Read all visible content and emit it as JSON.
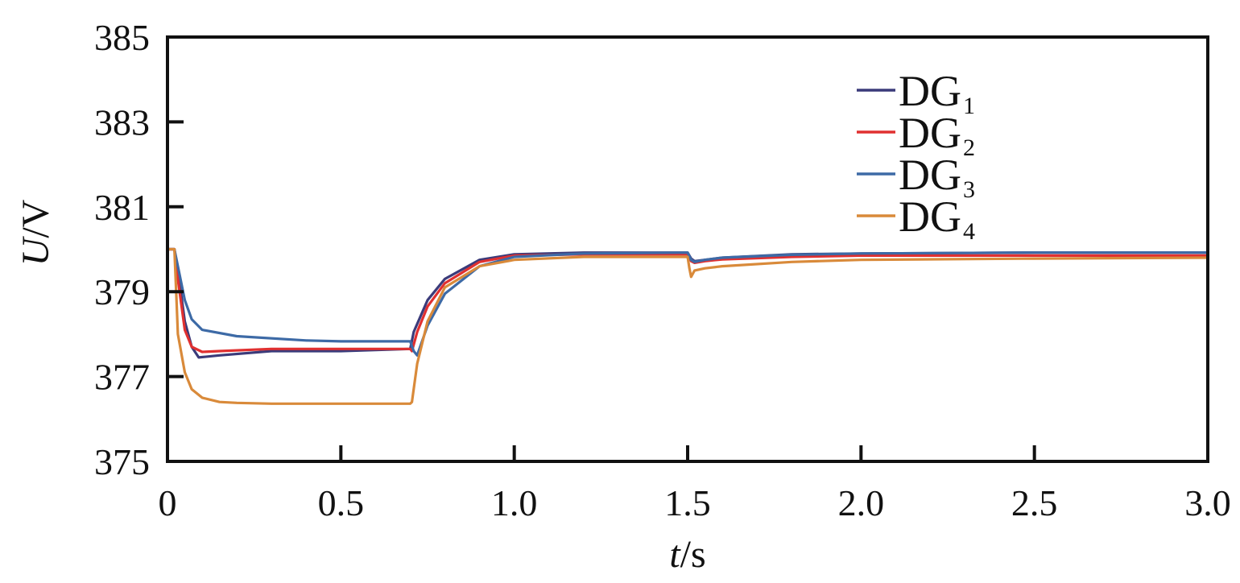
{
  "chart_data": {
    "type": "line",
    "xlabel": {
      "var": "t",
      "unit": "/s"
    },
    "ylabel": {
      "var": "U",
      "unit": "/V"
    },
    "xlim": [
      0,
      3.0
    ],
    "ylim": [
      375,
      385
    ],
    "xticks": [
      "0",
      "0.5",
      "1.0",
      "1.5",
      "2.0",
      "2.5",
      "3.0"
    ],
    "xtick_values": [
      0,
      0.5,
      1.0,
      1.5,
      2.0,
      2.5,
      3.0
    ],
    "yticks": [
      "375",
      "377",
      "379",
      "381",
      "383",
      "385"
    ],
    "ytick_values": [
      375,
      377,
      379,
      381,
      383,
      385
    ],
    "grid": false,
    "legend_position": "top-right",
    "series": [
      {
        "name": "DG",
        "sub": "1",
        "color": "#3b3b7a",
        "x": [
          0,
          0.02,
          0.03,
          0.05,
          0.07,
          0.09,
          0.15,
          0.3,
          0.5,
          0.7,
          0.71,
          0.75,
          0.8,
          0.9,
          1.0,
          1.2,
          1.5,
          1.51,
          1.52,
          1.55,
          1.6,
          1.8,
          2.0,
          2.5,
          3.0
        ],
        "y": [
          380,
          380,
          379.5,
          378.3,
          377.7,
          377.45,
          377.5,
          377.6,
          377.6,
          377.65,
          378.05,
          378.8,
          379.3,
          379.75,
          379.88,
          379.92,
          379.92,
          379.78,
          379.72,
          379.75,
          379.8,
          379.88,
          379.9,
          379.92,
          379.92
        ]
      },
      {
        "name": "DG",
        "sub": "2",
        "color": "#e03030",
        "x": [
          0,
          0.02,
          0.03,
          0.05,
          0.07,
          0.1,
          0.15,
          0.3,
          0.5,
          0.7,
          0.705,
          0.72,
          0.75,
          0.8,
          0.9,
          1.0,
          1.2,
          1.5,
          1.51,
          1.52,
          1.55,
          1.6,
          1.8,
          2.0,
          2.5,
          3.0
        ],
        "y": [
          380,
          380,
          379.3,
          378.1,
          377.7,
          377.58,
          377.6,
          377.65,
          377.65,
          377.65,
          377.6,
          378.05,
          378.65,
          379.2,
          379.7,
          379.85,
          379.88,
          379.88,
          379.72,
          379.68,
          379.72,
          379.76,
          379.82,
          379.85,
          379.85,
          379.85
        ]
      },
      {
        "name": "DG",
        "sub": "3",
        "color": "#3d6aa6",
        "x": [
          0,
          0.02,
          0.03,
          0.05,
          0.07,
          0.1,
          0.2,
          0.4,
          0.5,
          0.7,
          0.71,
          0.72,
          0.75,
          0.8,
          0.9,
          1.0,
          1.2,
          1.5,
          1.51,
          1.52,
          1.55,
          1.6,
          1.8,
          2.0,
          2.5,
          3.0
        ],
        "y": [
          380,
          380,
          379.6,
          378.8,
          378.35,
          378.1,
          377.95,
          377.85,
          377.83,
          377.83,
          377.6,
          377.5,
          378.2,
          378.95,
          379.6,
          379.82,
          379.9,
          379.92,
          379.75,
          379.7,
          379.75,
          379.8,
          379.87,
          379.9,
          379.92,
          379.92
        ]
      },
      {
        "name": "DG",
        "sub": "4",
        "color": "#d98a3a",
        "x": [
          0,
          0.02,
          0.025,
          0.03,
          0.05,
          0.07,
          0.1,
          0.15,
          0.2,
          0.3,
          0.5,
          0.7,
          0.705,
          0.72,
          0.75,
          0.8,
          0.9,
          1.0,
          1.2,
          1.5,
          1.505,
          1.51,
          1.52,
          1.55,
          1.6,
          1.8,
          2.0,
          2.5,
          3.0
        ],
        "y": [
          380,
          380,
          379.0,
          378.0,
          377.1,
          376.7,
          376.5,
          376.4,
          376.38,
          376.36,
          376.36,
          376.36,
          376.4,
          377.3,
          378.3,
          379.1,
          379.6,
          379.75,
          379.82,
          379.82,
          379.55,
          379.35,
          379.5,
          379.55,
          379.6,
          379.7,
          379.75,
          379.78,
          379.8
        ]
      }
    ]
  }
}
